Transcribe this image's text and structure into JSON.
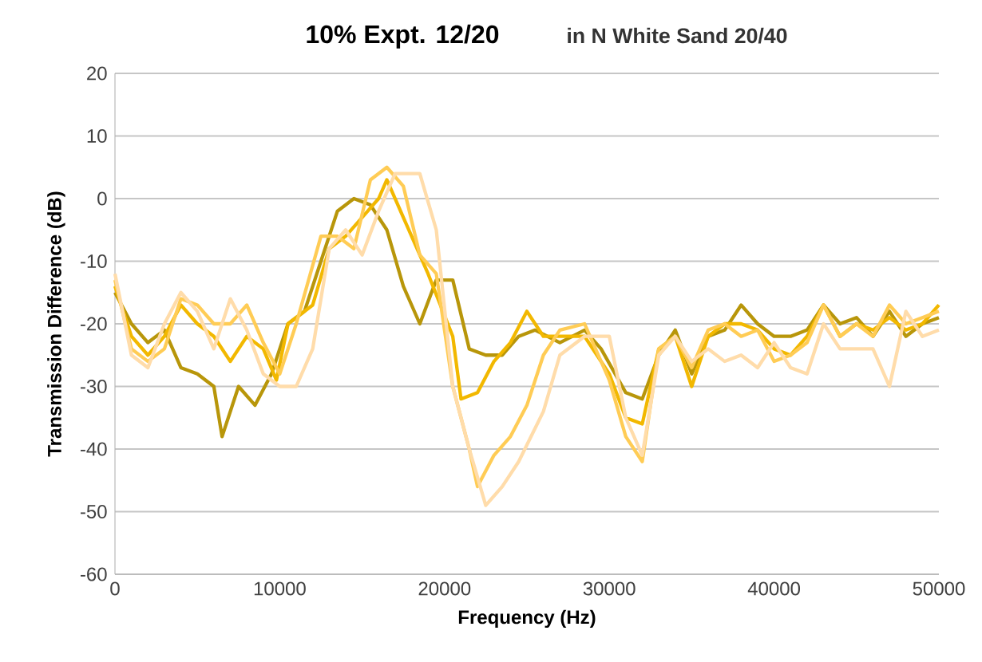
{
  "chart_data": {
    "type": "line",
    "title": "10% Expt. 12/20",
    "subtitle": "in N White Sand 20/40",
    "xlabel": "Frequency (Hz)",
    "ylabel": "Transmission Difference (dB)",
    "xlim": [
      0,
      50000
    ],
    "ylim": [
      -60,
      20
    ],
    "xticks": [
      0,
      10000,
      20000,
      30000,
      40000,
      50000
    ],
    "yticks": [
      -60,
      -50,
      -40,
      -30,
      -20,
      -10,
      0,
      10,
      20
    ],
    "grid": "y",
    "marker": "none",
    "line_style": "solid",
    "series": [
      {
        "color": "#b8960a",
        "x": [
          0,
          1000,
          2000,
          3000,
          4000,
          5000,
          6000,
          6500,
          7500,
          8500,
          9500,
          10500,
          11500,
          12500,
          13500,
          14500,
          15500,
          16500,
          17500,
          18500,
          19500,
          20500,
          21500,
          22500,
          23500,
          24500,
          25500,
          27000,
          28500,
          29500,
          31000,
          32000,
          33000,
          34000,
          35000,
          36000,
          37000,
          38000,
          39000,
          40000,
          41000,
          42000,
          43000,
          44000,
          45000,
          46000,
          47000,
          48000,
          49000,
          50000
        ],
        "values": [
          -15,
          -20,
          -23,
          -21,
          -27,
          -28,
          -30,
          -38,
          -30,
          -33,
          -28,
          -20,
          -18,
          -10,
          -2,
          0,
          -1,
          -5,
          -14,
          -20,
          -13,
          -13,
          -24,
          -25,
          -25,
          -22,
          -21,
          -23,
          -21,
          -24,
          -31,
          -32,
          -25,
          -21,
          -28,
          -22,
          -21,
          -17,
          -20,
          -22,
          -22,
          -21,
          -17,
          -20,
          -19,
          -22,
          -18,
          -22,
          -20,
          -19
        ]
      },
      {
        "color": "#f2b800",
        "x": [
          0,
          1000,
          2000,
          3000,
          4000,
          5000,
          6000,
          7000,
          8000,
          9000,
          9800,
          10500,
          12000,
          13000,
          14000,
          15000,
          16000,
          16500,
          17500,
          19000,
          20500,
          21000,
          22000,
          23000,
          24000,
          25000,
          26000,
          27000,
          28500,
          30000,
          31000,
          32000,
          33000,
          34000,
          35000,
          36000,
          37000,
          38000,
          39000,
          40000,
          41000,
          42000,
          43000,
          44000,
          45000,
          46000,
          47000,
          48000,
          49000,
          50000
        ],
        "values": [
          -14,
          -22,
          -25,
          -22,
          -17,
          -20,
          -22,
          -26,
          -22,
          -24,
          -29,
          -20,
          -17,
          -8,
          -6,
          -3,
          0,
          3,
          -3,
          -12,
          -22,
          -32,
          -31,
          -26,
          -23,
          -18,
          -22,
          -22,
          -22,
          -28,
          -35,
          -36,
          -24,
          -22,
          -30,
          -22,
          -20,
          -20,
          -21,
          -24,
          -25,
          -22,
          -17,
          -22,
          -20,
          -21,
          -19,
          -21,
          -20,
          -17
        ]
      },
      {
        "color": "#ffcc55",
        "x": [
          0,
          1000,
          2000,
          3000,
          4000,
          5000,
          6000,
          7000,
          8000,
          9000,
          10000,
          11000,
          12500,
          13500,
          14500,
          15500,
          16500,
          17500,
          18500,
          19500,
          20500,
          21500,
          22000,
          23000,
          24000,
          25000,
          26000,
          27000,
          28500,
          30000,
          31000,
          32000,
          33000,
          34000,
          35000,
          36000,
          37000,
          38000,
          39000,
          40000,
          41000,
          42000,
          43000,
          44000,
          45000,
          46000,
          47000,
          48000,
          49000,
          50000
        ],
        "values": [
          -13,
          -24,
          -26,
          -24,
          -16,
          -17,
          -20,
          -20,
          -17,
          -23,
          -28,
          -20,
          -6,
          -6,
          -8,
          3,
          5,
          2,
          -9,
          -12,
          -30,
          -40,
          -46,
          -41,
          -38,
          -33,
          -25,
          -21,
          -20,
          -29,
          -38,
          -42,
          -24,
          -22,
          -27,
          -21,
          -20,
          -22,
          -21,
          -26,
          -25,
          -23,
          -17,
          -22,
          -20,
          -22,
          -17,
          -20,
          -19,
          -18
        ]
      },
      {
        "color": "#ffdcaa",
        "x": [
          0,
          1000,
          2000,
          3000,
          4000,
          5000,
          6000,
          7000,
          8000,
          9000,
          10000,
          11000,
          12000,
          13000,
          14000,
          15000,
          16000,
          17000,
          18500,
          19500,
          20500,
          21500,
          22500,
          23500,
          24500,
          26000,
          27000,
          28500,
          30000,
          31000,
          32000,
          33000,
          34000,
          35000,
          36000,
          37000,
          38000,
          39000,
          40000,
          41000,
          42000,
          43000,
          44000,
          45000,
          46000,
          47000,
          48000,
          49000,
          50000
        ],
        "values": [
          -12,
          -25,
          -27,
          -20,
          -15,
          -18,
          -24,
          -16,
          -21,
          -28,
          -30,
          -30,
          -24,
          -8,
          -5,
          -9,
          -2,
          4,
          4,
          -5,
          -30,
          -40,
          -49,
          -46,
          -42,
          -34,
          -25,
          -22,
          -22,
          -35,
          -41,
          -25,
          -22,
          -26,
          -24,
          -26,
          -25,
          -27,
          -23,
          -27,
          -28,
          -20,
          -24,
          -24,
          -24,
          -30,
          -18,
          -22,
          -21
        ]
      }
    ]
  }
}
